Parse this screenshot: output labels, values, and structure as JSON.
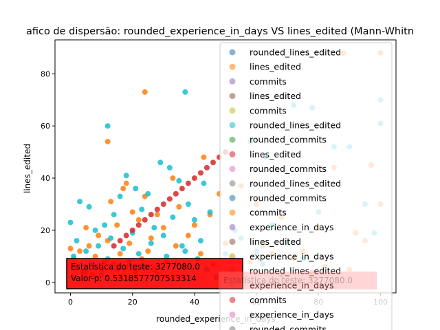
{
  "chart_data": {
    "type": "scatter",
    "title": "afico de dispersão: rounded_experience_in_days VS lines_edited (Mann-Whitn",
    "xlabel": "rounded_experience_in_days",
    "ylabel": "lines_edited",
    "xlim": [
      -5,
      105
    ],
    "ylim": [
      -4,
      93
    ],
    "xticks": [
      0,
      20,
      40,
      60,
      80,
      100
    ],
    "yticks": [
      0,
      20,
      40,
      60,
      80
    ],
    "legend_position": "upper-right",
    "legend_entries": [
      {
        "label": "rounded_lines_edited",
        "color": "#1f77b4"
      },
      {
        "label": "lines_edited",
        "color": "#ff7f0e"
      },
      {
        "label": "commits",
        "color": "#9467bd"
      },
      {
        "label": "lines_edited",
        "color": "#8c564b"
      },
      {
        "label": "commits",
        "color": "#bcbd22"
      },
      {
        "label": "rounded_lines_edited",
        "color": "#17becf"
      },
      {
        "label": "rounded_commits",
        "color": "#2ca02c"
      },
      {
        "label": "lines_edited",
        "color": "#d62728"
      },
      {
        "label": "rounded_commits",
        "color": "#e377c2"
      },
      {
        "label": "rounded_lines_edited",
        "color": "#7f7f7f"
      },
      {
        "label": "rounded_commits",
        "color": "#1f77b4"
      },
      {
        "label": "commits",
        "color": "#ff7f0e"
      },
      {
        "label": "experience_in_days",
        "color": "#9467bd"
      },
      {
        "label": "lines_edited",
        "color": "#8c564b"
      },
      {
        "label": "experience_in_days",
        "color": "#bcbd22"
      },
      {
        "label": "rounded_lines_edited",
        "color": "#17becf"
      },
      {
        "label": "experience_in_days",
        "color": "#2ca02c"
      },
      {
        "label": "commits",
        "color": "#d62728"
      },
      {
        "label": "experience_in_days",
        "color": "#e377c2"
      },
      {
        "label": "rounded_commits",
        "color": "#7f7f7f"
      }
    ],
    "series": [
      {
        "name": "lines_edited",
        "color": "#ff7f0e",
        "x": [
          0,
          1,
          1,
          2,
          3,
          5,
          5,
          6,
          7,
          8,
          9,
          10,
          11,
          12,
          12,
          13,
          14,
          15,
          16,
          17,
          18,
          18,
          19,
          20,
          21,
          22,
          23,
          24,
          24,
          25,
          26,
          27,
          28,
          30,
          31,
          33,
          34,
          35,
          36,
          38,
          40,
          42,
          43,
          45,
          46,
          48,
          50,
          52,
          55,
          58,
          60,
          62,
          65,
          68,
          70,
          72,
          75,
          78,
          80,
          82,
          85,
          88,
          90,
          92,
          95,
          97,
          100,
          100
        ],
        "y": [
          13,
          9,
          2,
          6,
          12,
          4,
          21,
          14,
          3,
          10,
          18,
          5,
          8,
          54,
          16,
          31,
          7,
          22,
          11,
          36,
          6,
          38,
          15,
          27,
          4,
          24,
          9,
          73,
          33,
          12,
          17,
          5,
          26,
          21,
          8,
          40,
          14,
          29,
          6,
          18,
          22,
          11,
          48,
          26,
          7,
          34,
          15,
          10,
          37,
          8,
          30,
          14,
          11,
          25,
          16,
          9,
          12,
          4,
          21,
          6,
          44,
          88,
          5,
          19,
          16,
          45,
          30,
          88
        ]
      },
      {
        "name": "rounded_lines_edited",
        "color": "#17becf",
        "x": [
          0,
          1,
          2,
          3,
          4,
          5,
          6,
          7,
          8,
          9,
          10,
          11,
          12,
          12,
          13,
          14,
          15,
          16,
          17,
          18,
          19,
          20,
          21,
          22,
          23,
          24,
          25,
          26,
          27,
          28,
          29,
          30,
          31,
          32,
          33,
          34,
          35,
          36,
          37,
          37,
          38,
          40,
          41,
          42,
          43,
          44,
          45,
          47,
          50,
          53,
          55,
          58,
          60,
          62,
          63,
          65,
          68,
          70,
          72,
          75,
          78,
          80,
          85,
          90,
          95,
          98,
          100,
          100
        ],
        "y": [
          23,
          10,
          16,
          31,
          4,
          12,
          29,
          7,
          20,
          14,
          3,
          22,
          60,
          9,
          17,
          26,
          5,
          33,
          13,
          41,
          8,
          19,
          36,
          11,
          28,
          6,
          34,
          15,
          21,
          3,
          46,
          18,
          10,
          44,
          25,
          7,
          39,
          14,
          73,
          12,
          30,
          24,
          9,
          16,
          38,
          5,
          27,
          2,
          11,
          20,
          17,
          54,
          12,
          7,
          48,
          22,
          3,
          15,
          68,
          9,
          67,
          27,
          52,
          52,
          30,
          19,
          70,
          61
        ]
      },
      {
        "name": "lines_edited",
        "color": "#d62728",
        "x": [
          14,
          16,
          18,
          20,
          22,
          24,
          26,
          28,
          30,
          32,
          34,
          36,
          38,
          40,
          42,
          44,
          46,
          48,
          50
        ],
        "y": [
          14,
          16,
          18,
          20,
          22,
          24,
          26,
          28,
          30,
          32,
          34,
          36,
          38,
          40,
          42,
          44,
          46,
          48,
          50
        ]
      }
    ],
    "annotations": [
      "Estatística do teste: 3277080.0",
      "Valor-p: 0.5318577707513314",
      "Estatística do teste: 3277080.0"
    ]
  }
}
